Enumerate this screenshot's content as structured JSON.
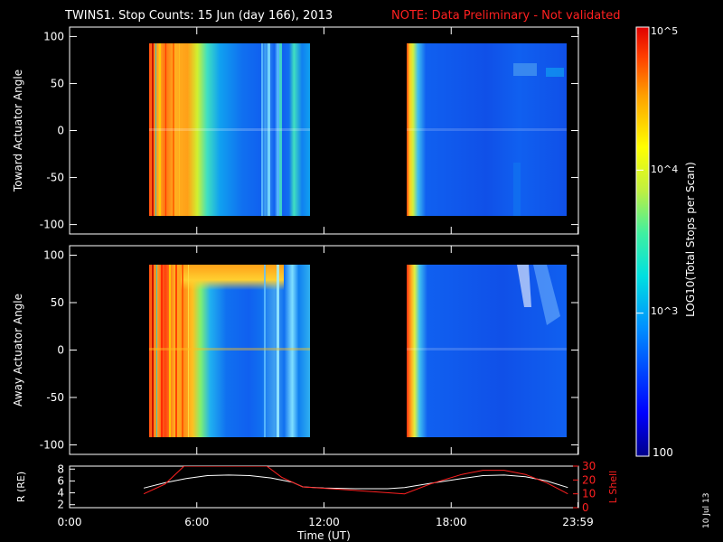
{
  "title": {
    "main": "TWINS1. Stop Counts: 15 Jun (day 166), 2013",
    "note": "NOTE: Data Preliminary - Not validated"
  },
  "datestamp": "10 Jul 13",
  "colors": {
    "background": "#000000",
    "foreground": "#ffffff",
    "note": "#ff2020",
    "lshell_line": "#ff2020",
    "r_line": "#ffffff",
    "colormap": [
      "#00008a",
      "#0000ff",
      "#0090ff",
      "#00e0e0",
      "#40f0a0",
      "#c0f040",
      "#ffff00",
      "#ffa000",
      "#ff4000",
      "#e00000"
    ]
  },
  "chart_data": [
    {
      "type": "heatmap",
      "name": "toward",
      "ylabel": "Toward Actuator Angle",
      "ylim": [
        -110,
        110
      ],
      "yticks": [
        100,
        50,
        0,
        -50,
        -100
      ],
      "xlim": [
        0,
        24
      ],
      "data_blocks": [
        {
          "start_hr": 3.5,
          "end_hr": 11.1,
          "angle_range": [
            -88,
            90
          ]
        },
        {
          "start_hr": 15.8,
          "end_hr": 23.5,
          "angle_range": [
            -88,
            90
          ]
        }
      ],
      "colorbar": {
        "label": "LOG10(Total Stops per Scan)",
        "scale": "log",
        "range": [
          100,
          100000
        ],
        "tick_labels": [
          "10^5",
          "10^4",
          "10^3",
          "100"
        ]
      }
    },
    {
      "type": "heatmap",
      "name": "away",
      "ylabel": "Away Actuator Angle",
      "ylim": [
        -110,
        110
      ],
      "yticks": [
        100,
        50,
        0,
        -50,
        -100
      ],
      "xlim": [
        0,
        24
      ],
      "data_blocks": [
        {
          "start_hr": 3.5,
          "end_hr": 11.1,
          "angle_range": [
            -88,
            90
          ]
        },
        {
          "start_hr": 15.8,
          "end_hr": 23.5,
          "angle_range": [
            -88,
            90
          ]
        }
      ]
    },
    {
      "type": "line",
      "name": "orbit",
      "xlabel": "Time (UT)",
      "xlim": [
        0,
        24
      ],
      "xtick_labels": [
        "0:00",
        "6:00",
        "12:00",
        "18:00",
        "23:59"
      ],
      "xtick_values": [
        0,
        6,
        12,
        18,
        23.98
      ],
      "left_axis": {
        "label": "R (RE)",
        "ylim": [
          1.5,
          8.5
        ],
        "yticks": [
          2,
          4,
          6,
          8
        ]
      },
      "right_axis": {
        "label": "L Shell",
        "ylim": [
          0,
          30
        ],
        "yticks": [
          0,
          10,
          20,
          30
        ]
      },
      "series": [
        {
          "name": "R (RE)",
          "axis": "left",
          "x": [
            3.5,
            4.5,
            5.5,
            6.5,
            7.5,
            8.5,
            9.5,
            10.5,
            11.0,
            12.0,
            13.5,
            15.0,
            15.8,
            17.0,
            18.5,
            19.5,
            20.5,
            21.5,
            22.5,
            23.5
          ],
          "y": [
            4.8,
            5.7,
            6.4,
            6.9,
            7.0,
            6.9,
            6.5,
            5.8,
            5.0,
            4.8,
            4.7,
            4.7,
            4.9,
            5.6,
            6.4,
            6.9,
            7.0,
            6.7,
            6.0,
            4.9
          ]
        },
        {
          "name": "L Shell",
          "axis": "right",
          "x": [
            3.5,
            4.5,
            5.4,
            9.3,
            10.0,
            11.0,
            13.0,
            15.8,
            17.0,
            18.5,
            19.5,
            20.5,
            21.5,
            22.5,
            23.5
          ],
          "y": [
            10,
            17,
            30,
            30,
            22,
            15,
            13,
            10,
            17,
            24,
            27,
            27,
            24,
            18,
            10
          ]
        }
      ]
    }
  ]
}
